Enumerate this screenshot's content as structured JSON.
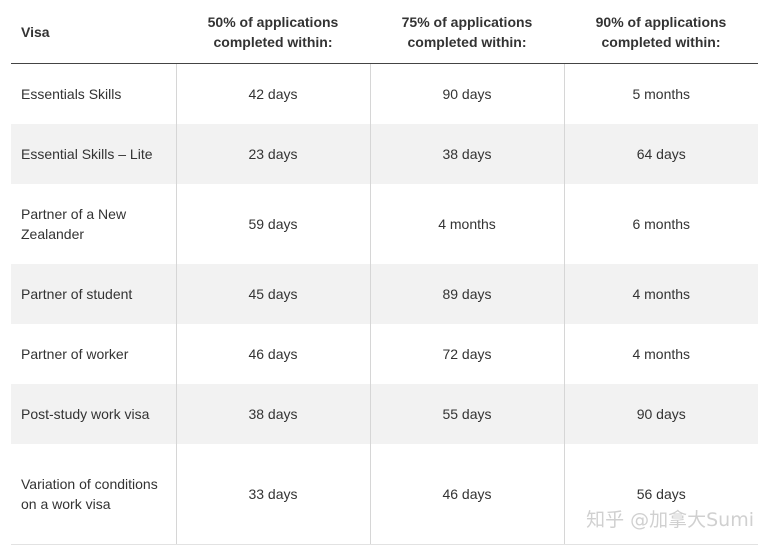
{
  "table": {
    "headers": [
      "Visa",
      "50% of applications completed within:",
      "75% of applications completed within:",
      "90% of applications completed within:"
    ],
    "rows": [
      [
        "Essentials Skills",
        "42 days",
        "90 days",
        "5 months"
      ],
      [
        "Essential Skills – Lite",
        "23 days",
        "38 days",
        "64 days"
      ],
      [
        "Partner of a New Zealander",
        "59 days",
        "4 months",
        "6 months"
      ],
      [
        "Partner of student",
        "45 days",
        "89 days",
        "4 months"
      ],
      [
        "Partner of worker",
        "46 days",
        "72 days",
        "4 months"
      ],
      [
        "Post-study work visa",
        "38 days",
        "55 days",
        "90 days"
      ],
      [
        "Variation of conditions on a work visa",
        "33 days",
        "46 days",
        "56 days"
      ]
    ]
  },
  "watermark": "知乎 @加拿大Sumi"
}
